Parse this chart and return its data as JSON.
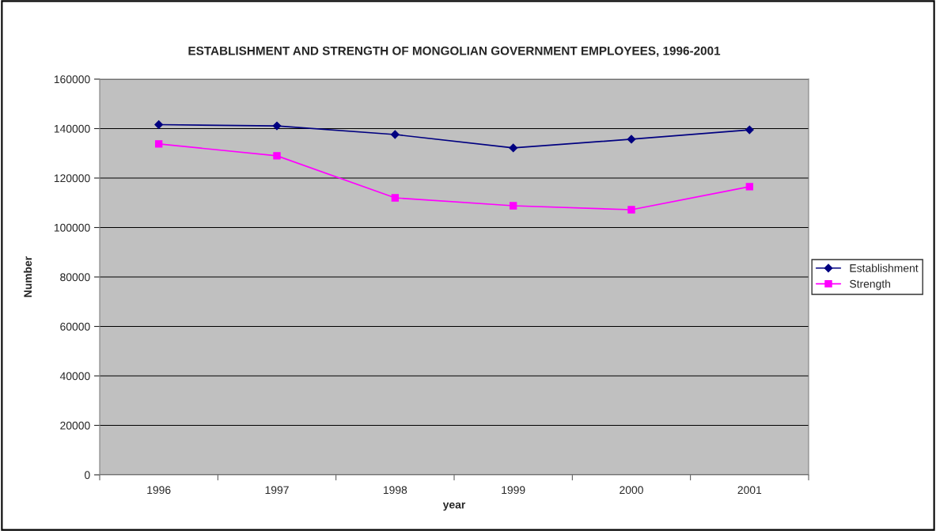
{
  "chart_data": {
    "type": "line",
    "title": "ESTABLISHMENT AND STRENGTH OF MONGOLIAN GOVERNMENT EMPLOYEES, 1996-2001",
    "xlabel": "year",
    "ylabel": "Number",
    "categories": [
      "1996",
      "1997",
      "1998",
      "1999",
      "2000",
      "2001"
    ],
    "series": [
      {
        "name": "Establishment",
        "color": "#000080",
        "marker": "diamond",
        "values": [
          141600,
          141100,
          137600,
          132200,
          135700,
          139500
        ]
      },
      {
        "name": "Strength",
        "color": "#ff00ff",
        "marker": "square",
        "values": [
          133800,
          129000,
          112000,
          108800,
          107200,
          116500
        ]
      }
    ],
    "ylim": [
      0,
      160000
    ],
    "yticks": [
      0,
      20000,
      40000,
      60000,
      80000,
      100000,
      120000,
      140000,
      160000
    ],
    "grid": "y",
    "legend": "right",
    "line_style": "solid"
  }
}
